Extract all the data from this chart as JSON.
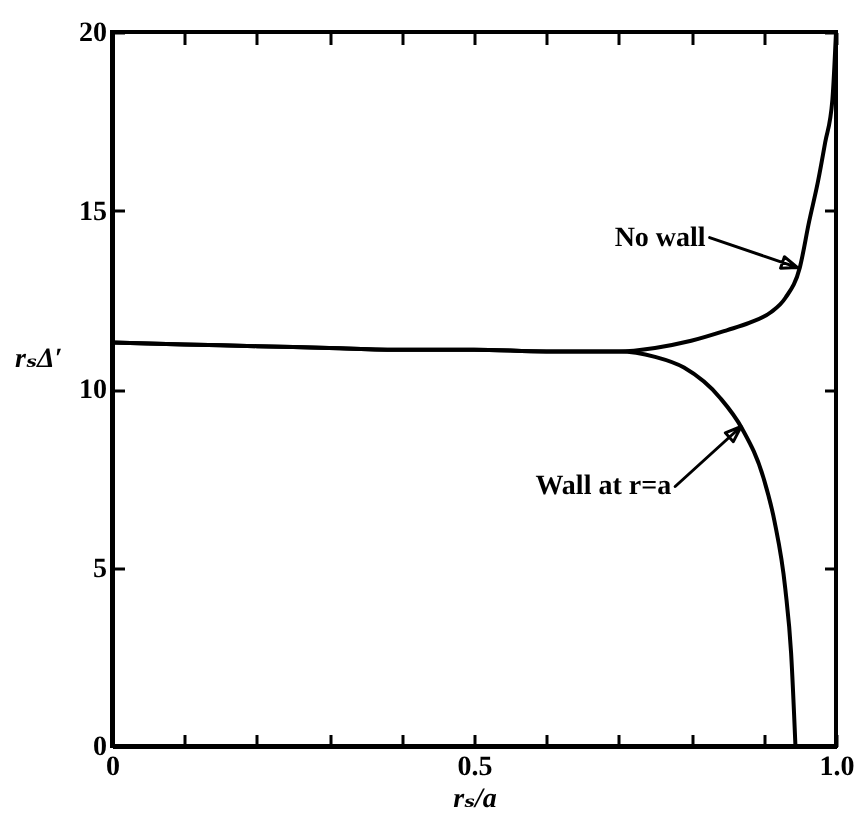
{
  "chart_data": {
    "type": "line",
    "xlabel": "rₛ/a",
    "ylabel": "rₛΔ′",
    "xlim": [
      0,
      1
    ],
    "ylim": [
      0,
      20
    ],
    "xticks": [
      0,
      {
        "value": 0.1,
        "label": null
      },
      {
        "value": 0.2,
        "label": null
      },
      {
        "value": 0.3,
        "label": null
      },
      {
        "value": 0.4,
        "label": null
      },
      0.5,
      {
        "value": 0.6,
        "label": null
      },
      {
        "value": 0.7,
        "label": null
      },
      {
        "value": 0.8,
        "label": null
      },
      {
        "value": 0.9,
        "label": null
      },
      {
        "value": 1,
        "label": "1.0"
      }
    ],
    "yticks": [
      0,
      5,
      10,
      15,
      20
    ],
    "series": [
      {
        "color": "#000000",
        "x": [
          0,
          0.1,
          0.2,
          0.3,
          0.4,
          0.5,
          0.6,
          0.7,
          0.75,
          0.8,
          0.85,
          0.88,
          0.91,
          0.93,
          0.95,
          0.963,
          0.975,
          0.985,
          0.995,
          1.0
        ],
        "values": [
          11.3,
          11.25,
          11.2,
          11.15,
          11.1,
          11.1,
          11.05,
          11.05,
          11.15,
          11.35,
          11.65,
          11.85,
          12.15,
          12.55,
          13.4,
          14.7,
          15.8,
          16.9,
          18.1,
          20
        ]
      },
      {
        "color": "#000000",
        "x": [
          0,
          0.1,
          0.2,
          0.3,
          0.4,
          0.5,
          0.6,
          0.7,
          0.75,
          0.79,
          0.84,
          0.87,
          0.9,
          0.915,
          0.93,
          0.938,
          0.944
        ],
        "values": [
          11.3,
          11.25,
          11.2,
          11.15,
          11.1,
          11.1,
          11.05,
          11.05,
          10.9,
          10.6,
          9.75,
          8.9,
          7.5,
          6.3,
          4.4,
          2.6,
          0
        ]
      }
    ],
    "annotations": [
      {
        "text": "No wall",
        "x": 0.947,
        "y": 13.4
      },
      {
        "text": "Wall at r=a",
        "x": 0.869,
        "y": 8.95
      }
    ]
  }
}
